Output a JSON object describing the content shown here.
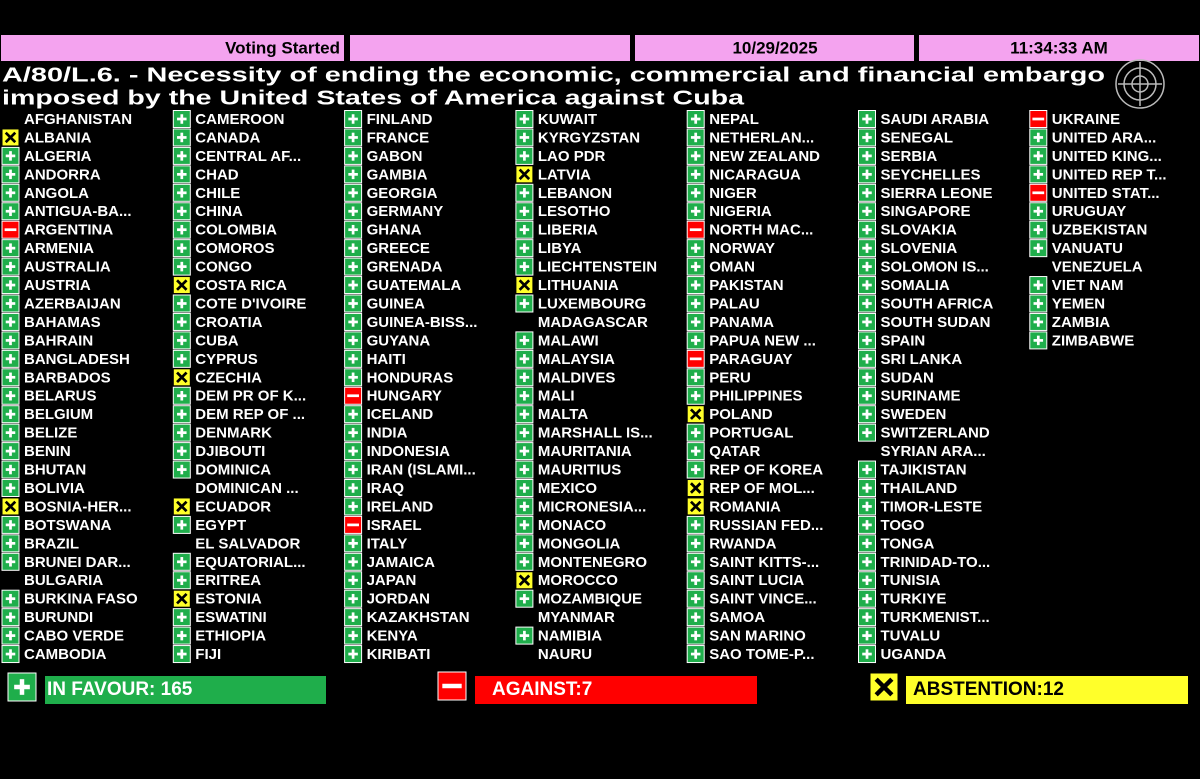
{
  "header": {
    "status": "Voting Started",
    "date": "10/29/2025",
    "time": "11:34:33 AM"
  },
  "title": [
    "A/80/L.6. - Necessity of ending the economic, commercial and financial embargo",
    "imposed by the United States of America against Cuba"
  ],
  "columns": [
    [
      {
        "name": "AFGHANISTAN"
      },
      {
        "name": "ALBANIA",
        "vote": "abstain"
      },
      {
        "name": "ALGERIA",
        "vote": "yes"
      },
      {
        "name": "ANDORRA",
        "vote": "yes"
      },
      {
        "name": "ANGOLA",
        "vote": "yes"
      },
      {
        "name": "ANTIGUA-BA...",
        "vote": "yes"
      },
      {
        "name": "ARGENTINA",
        "vote": "no"
      },
      {
        "name": "ARMENIA",
        "vote": "yes"
      },
      {
        "name": "AUSTRALIA",
        "vote": "yes"
      },
      {
        "name": "AUSTRIA",
        "vote": "yes"
      },
      {
        "name": "AZERBAIJAN",
        "vote": "yes"
      },
      {
        "name": "BAHAMAS",
        "vote": "yes"
      },
      {
        "name": "BAHRAIN",
        "vote": "yes"
      },
      {
        "name": "BANGLADESH",
        "vote": "yes"
      },
      {
        "name": "BARBADOS",
        "vote": "yes"
      },
      {
        "name": "BELARUS",
        "vote": "yes"
      },
      {
        "name": "BELGIUM",
        "vote": "yes"
      },
      {
        "name": "BELIZE",
        "vote": "yes"
      },
      {
        "name": "BENIN",
        "vote": "yes"
      },
      {
        "name": "BHUTAN",
        "vote": "yes"
      },
      {
        "name": "BOLIVIA",
        "vote": "yes"
      },
      {
        "name": "BOSNIA-HER...",
        "vote": "abstain"
      },
      {
        "name": "BOTSWANA",
        "vote": "yes"
      },
      {
        "name": "BRAZIL",
        "vote": "yes"
      },
      {
        "name": "BRUNEI DAR...",
        "vote": "yes"
      },
      {
        "name": "BULGARIA"
      },
      {
        "name": "BURKINA FASO",
        "vote": "yes"
      },
      {
        "name": "BURUNDI",
        "vote": "yes"
      },
      {
        "name": "CABO VERDE",
        "vote": "yes"
      },
      {
        "name": "CAMBODIA",
        "vote": "yes"
      }
    ],
    [
      {
        "name": "CAMEROON",
        "vote": "yes"
      },
      {
        "name": "CANADA",
        "vote": "yes"
      },
      {
        "name": "CENTRAL AF...",
        "vote": "yes"
      },
      {
        "name": "CHAD",
        "vote": "yes"
      },
      {
        "name": "CHILE",
        "vote": "yes"
      },
      {
        "name": "CHINA",
        "vote": "yes"
      },
      {
        "name": "COLOMBIA",
        "vote": "yes"
      },
      {
        "name": "COMOROS",
        "vote": "yes"
      },
      {
        "name": "CONGO",
        "vote": "yes"
      },
      {
        "name": "COSTA RICA",
        "vote": "abstain"
      },
      {
        "name": "COTE D'IVOIRE",
        "vote": "yes"
      },
      {
        "name": "CROATIA",
        "vote": "yes"
      },
      {
        "name": "CUBA",
        "vote": "yes"
      },
      {
        "name": "CYPRUS",
        "vote": "yes"
      },
      {
        "name": "CZECHIA",
        "vote": "abstain"
      },
      {
        "name": "DEM PR OF K...",
        "vote": "yes"
      },
      {
        "name": "DEM REP OF ...",
        "vote": "yes"
      },
      {
        "name": "DENMARK",
        "vote": "yes"
      },
      {
        "name": "DJIBOUTI",
        "vote": "yes"
      },
      {
        "name": "DOMINICA",
        "vote": "yes"
      },
      {
        "name": "DOMINICAN ..."
      },
      {
        "name": "ECUADOR",
        "vote": "abstain"
      },
      {
        "name": "EGYPT",
        "vote": "yes"
      },
      {
        "name": "EL SALVADOR"
      },
      {
        "name": "EQUATORIAL...",
        "vote": "yes"
      },
      {
        "name": "ERITREA",
        "vote": "yes"
      },
      {
        "name": "ESTONIA",
        "vote": "abstain"
      },
      {
        "name": "ESWATINI",
        "vote": "yes"
      },
      {
        "name": "ETHIOPIA",
        "vote": "yes"
      },
      {
        "name": "FIJI",
        "vote": "yes"
      }
    ],
    [
      {
        "name": "FINLAND",
        "vote": "yes"
      },
      {
        "name": "FRANCE",
        "vote": "yes"
      },
      {
        "name": "GABON",
        "vote": "yes"
      },
      {
        "name": "GAMBIA",
        "vote": "yes"
      },
      {
        "name": "GEORGIA",
        "vote": "yes"
      },
      {
        "name": "GERMANY",
        "vote": "yes"
      },
      {
        "name": "GHANA",
        "vote": "yes"
      },
      {
        "name": "GREECE",
        "vote": "yes"
      },
      {
        "name": "GRENADA",
        "vote": "yes"
      },
      {
        "name": "GUATEMALA",
        "vote": "yes"
      },
      {
        "name": "GUINEA",
        "vote": "yes"
      },
      {
        "name": "GUINEA-BISS...",
        "vote": "yes"
      },
      {
        "name": "GUYANA",
        "vote": "yes"
      },
      {
        "name": "HAITI",
        "vote": "yes"
      },
      {
        "name": "HONDURAS",
        "vote": "yes"
      },
      {
        "name": "HUNGARY",
        "vote": "no"
      },
      {
        "name": "ICELAND",
        "vote": "yes"
      },
      {
        "name": "INDIA",
        "vote": "yes"
      },
      {
        "name": "INDONESIA",
        "vote": "yes"
      },
      {
        "name": "IRAN (ISLAMI...",
        "vote": "yes"
      },
      {
        "name": "IRAQ",
        "vote": "yes"
      },
      {
        "name": "IRELAND",
        "vote": "yes"
      },
      {
        "name": "ISRAEL",
        "vote": "no"
      },
      {
        "name": "ITALY",
        "vote": "yes"
      },
      {
        "name": "JAMAICA",
        "vote": "yes"
      },
      {
        "name": "JAPAN",
        "vote": "yes"
      },
      {
        "name": "JORDAN",
        "vote": "yes"
      },
      {
        "name": "KAZAKHSTAN",
        "vote": "yes"
      },
      {
        "name": "KENYA",
        "vote": "yes"
      },
      {
        "name": "KIRIBATI",
        "vote": "yes"
      }
    ],
    [
      {
        "name": "KUWAIT",
        "vote": "yes"
      },
      {
        "name": "KYRGYZSTAN",
        "vote": "yes"
      },
      {
        "name": "LAO PDR",
        "vote": "yes"
      },
      {
        "name": "LATVIA",
        "vote": "abstain"
      },
      {
        "name": "LEBANON",
        "vote": "yes"
      },
      {
        "name": "LESOTHO",
        "vote": "yes"
      },
      {
        "name": "LIBERIA",
        "vote": "yes"
      },
      {
        "name": "LIBYA",
        "vote": "yes"
      },
      {
        "name": "LIECHTENSTEIN",
        "vote": "yes"
      },
      {
        "name": "LITHUANIA",
        "vote": "abstain"
      },
      {
        "name": "LUXEMBOURG",
        "vote": "yes"
      },
      {
        "name": "MADAGASCAR"
      },
      {
        "name": "MALAWI",
        "vote": "yes"
      },
      {
        "name": "MALAYSIA",
        "vote": "yes"
      },
      {
        "name": "MALDIVES",
        "vote": "yes"
      },
      {
        "name": "MALI",
        "vote": "yes"
      },
      {
        "name": "MALTA",
        "vote": "yes"
      },
      {
        "name": "MARSHALL IS...",
        "vote": "yes"
      },
      {
        "name": "MAURITANIA",
        "vote": "yes"
      },
      {
        "name": "MAURITIUS",
        "vote": "yes"
      },
      {
        "name": "MEXICO",
        "vote": "yes"
      },
      {
        "name": "MICRONESIA...",
        "vote": "yes"
      },
      {
        "name": "MONACO",
        "vote": "yes"
      },
      {
        "name": "MONGOLIA",
        "vote": "yes"
      },
      {
        "name": "MONTENEGRO",
        "vote": "yes"
      },
      {
        "name": "MOROCCO",
        "vote": "abstain"
      },
      {
        "name": "MOZAMBIQUE",
        "vote": "yes"
      },
      {
        "name": "MYANMAR"
      },
      {
        "name": "NAMIBIA",
        "vote": "yes"
      },
      {
        "name": "NAURU"
      }
    ],
    [
      {
        "name": "NEPAL",
        "vote": "yes"
      },
      {
        "name": "NETHERLAN...",
        "vote": "yes"
      },
      {
        "name": "NEW ZEALAND",
        "vote": "yes"
      },
      {
        "name": "NICARAGUA",
        "vote": "yes"
      },
      {
        "name": "NIGER",
        "vote": "yes"
      },
      {
        "name": "NIGERIA",
        "vote": "yes"
      },
      {
        "name": "NORTH MAC...",
        "vote": "no"
      },
      {
        "name": "NORWAY",
        "vote": "yes"
      },
      {
        "name": "OMAN",
        "vote": "yes"
      },
      {
        "name": "PAKISTAN",
        "vote": "yes"
      },
      {
        "name": "PALAU",
        "vote": "yes"
      },
      {
        "name": "PANAMA",
        "vote": "yes"
      },
      {
        "name": "PAPUA NEW ...",
        "vote": "yes"
      },
      {
        "name": "PARAGUAY",
        "vote": "no"
      },
      {
        "name": "PERU",
        "vote": "yes"
      },
      {
        "name": "PHILIPPINES",
        "vote": "yes"
      },
      {
        "name": "POLAND",
        "vote": "abstain"
      },
      {
        "name": "PORTUGAL",
        "vote": "yes"
      },
      {
        "name": "QATAR",
        "vote": "yes"
      },
      {
        "name": "REP OF KOREA",
        "vote": "yes"
      },
      {
        "name": "REP OF MOL...",
        "vote": "abstain"
      },
      {
        "name": "ROMANIA",
        "vote": "abstain"
      },
      {
        "name": "RUSSIAN FED...",
        "vote": "yes"
      },
      {
        "name": "RWANDA",
        "vote": "yes"
      },
      {
        "name": "SAINT KITTS-...",
        "vote": "yes"
      },
      {
        "name": "SAINT LUCIA",
        "vote": "yes"
      },
      {
        "name": "SAINT VINCE...",
        "vote": "yes"
      },
      {
        "name": "SAMOA",
        "vote": "yes"
      },
      {
        "name": "SAN MARINO",
        "vote": "yes"
      },
      {
        "name": "SAO TOME-P...",
        "vote": "yes"
      }
    ],
    [
      {
        "name": "SAUDI ARABIA",
        "vote": "yes"
      },
      {
        "name": "SENEGAL",
        "vote": "yes"
      },
      {
        "name": "SERBIA",
        "vote": "yes"
      },
      {
        "name": "SEYCHELLES",
        "vote": "yes"
      },
      {
        "name": "SIERRA LEONE",
        "vote": "yes"
      },
      {
        "name": "SINGAPORE",
        "vote": "yes"
      },
      {
        "name": "SLOVAKIA",
        "vote": "yes"
      },
      {
        "name": "SLOVENIA",
        "vote": "yes"
      },
      {
        "name": "SOLOMON IS...",
        "vote": "yes"
      },
      {
        "name": "SOMALIA",
        "vote": "yes"
      },
      {
        "name": "SOUTH AFRICA",
        "vote": "yes"
      },
      {
        "name": "SOUTH SUDAN",
        "vote": "yes"
      },
      {
        "name": "SPAIN",
        "vote": "yes"
      },
      {
        "name": "SRI LANKA",
        "vote": "yes"
      },
      {
        "name": "SUDAN",
        "vote": "yes"
      },
      {
        "name": "SURINAME",
        "vote": "yes"
      },
      {
        "name": "SWEDEN",
        "vote": "yes"
      },
      {
        "name": "SWITZERLAND",
        "vote": "yes"
      },
      {
        "name": "SYRIAN ARA..."
      },
      {
        "name": "TAJIKISTAN",
        "vote": "yes"
      },
      {
        "name": "THAILAND",
        "vote": "yes"
      },
      {
        "name": "TIMOR-LESTE",
        "vote": "yes"
      },
      {
        "name": "TOGO",
        "vote": "yes"
      },
      {
        "name": "TONGA",
        "vote": "yes"
      },
      {
        "name": "TRINIDAD-TO...",
        "vote": "yes"
      },
      {
        "name": "TUNISIA",
        "vote": "yes"
      },
      {
        "name": "TURKIYE",
        "vote": "yes"
      },
      {
        "name": "TURKMENIST...",
        "vote": "yes"
      },
      {
        "name": "TUVALU",
        "vote": "yes"
      },
      {
        "name": "UGANDA",
        "vote": "yes"
      }
    ],
    [
      {
        "name": "UKRAINE",
        "vote": "no"
      },
      {
        "name": "UNITED ARA...",
        "vote": "yes"
      },
      {
        "name": "UNITED KING...",
        "vote": "yes"
      },
      {
        "name": "UNITED REP T...",
        "vote": "yes"
      },
      {
        "name": "UNITED STAT...",
        "vote": "no"
      },
      {
        "name": "URUGUAY",
        "vote": "yes"
      },
      {
        "name": "UZBEKISTAN",
        "vote": "yes"
      },
      {
        "name": "VANUATU",
        "vote": "yes"
      },
      {
        "name": "VENEZUELA"
      },
      {
        "name": "VIET NAM",
        "vote": "yes"
      },
      {
        "name": "YEMEN",
        "vote": "yes"
      },
      {
        "name": "ZAMBIA",
        "vote": "yes"
      },
      {
        "name": "ZIMBABWE",
        "vote": "yes"
      }
    ]
  ],
  "totals": {
    "in_favour": "IN FAVOUR: 165",
    "against": "AGAINST:7",
    "abstention": "ABSTENTION:12"
  }
}
